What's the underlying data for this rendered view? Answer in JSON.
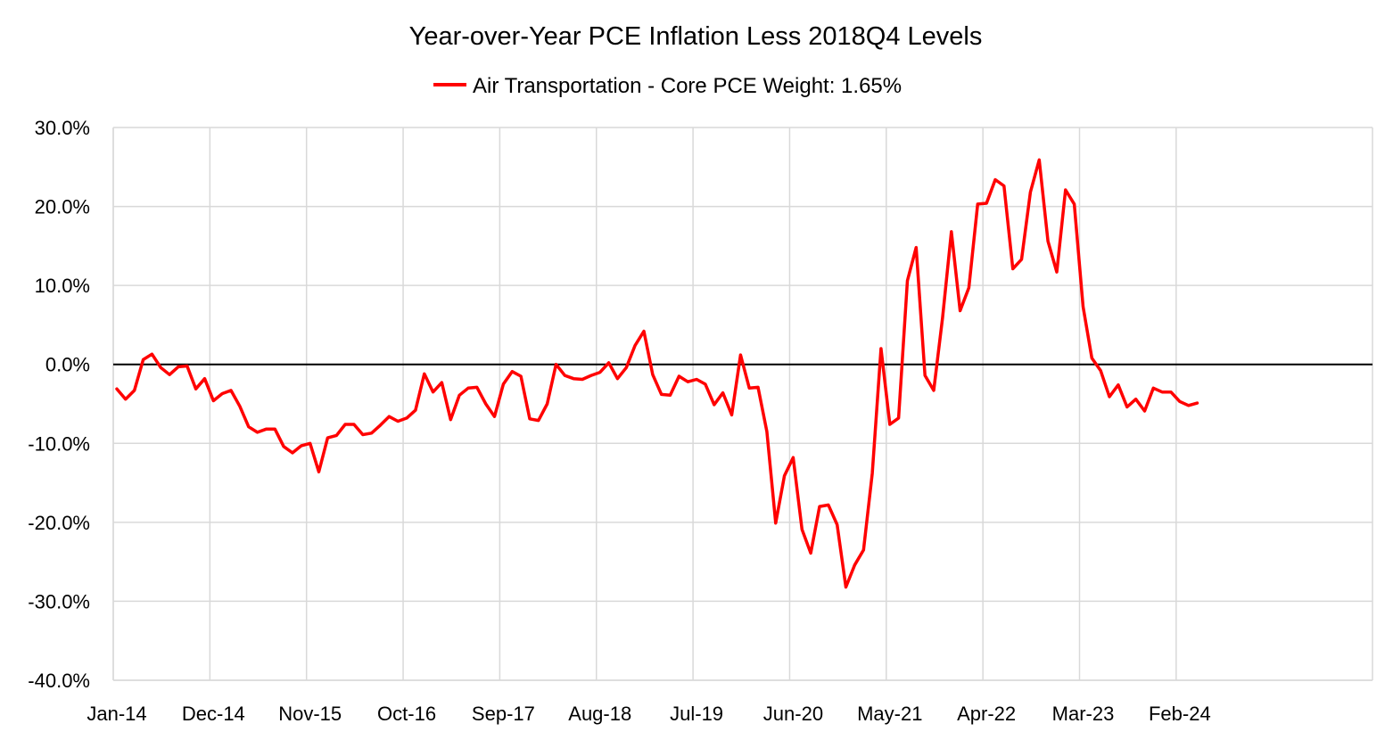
{
  "chart_data": {
    "type": "line",
    "title": "Year-over-Year PCE Inflation Less 2018Q4 Levels",
    "xlabel": "",
    "ylabel": "",
    "ylim": [
      -40,
      30
    ],
    "y_ticks": [
      "30.0%",
      "20.0%",
      "10.0%",
      "0.0%",
      "-10.0%",
      "-20.0%",
      "-30.0%",
      "-40.0%"
    ],
    "x_tick_labels": [
      "Jan-14",
      "Dec-14",
      "Nov-15",
      "Oct-16",
      "Sep-17",
      "Aug-18",
      "Jul-19",
      "Jun-20",
      "May-21",
      "Apr-22",
      "Mar-23",
      "Feb-24"
    ],
    "grid": true,
    "legend_position": "top-center",
    "series": [
      {
        "name": "Air Transportation - Core PCE Weight: 1.65%",
        "color": "#ff0000",
        "x": [
          "Jan-14",
          "Feb-14",
          "Mar-14",
          "Apr-14",
          "May-14",
          "Jun-14",
          "Jul-14",
          "Aug-14",
          "Sep-14",
          "Oct-14",
          "Nov-14",
          "Dec-14",
          "Jan-15",
          "Feb-15",
          "Mar-15",
          "Apr-15",
          "May-15",
          "Jun-15",
          "Jul-15",
          "Aug-15",
          "Sep-15",
          "Oct-15",
          "Nov-15",
          "Dec-15",
          "Jan-16",
          "Feb-16",
          "Mar-16",
          "Apr-16",
          "May-16",
          "Jun-16",
          "Jul-16",
          "Aug-16",
          "Sep-16",
          "Oct-16",
          "Nov-16",
          "Dec-16",
          "Jan-17",
          "Feb-17",
          "Mar-17",
          "Apr-17",
          "May-17",
          "Jun-17",
          "Jul-17",
          "Aug-17",
          "Sep-17",
          "Oct-17",
          "Nov-17",
          "Dec-17",
          "Jan-18",
          "Feb-18",
          "Mar-18",
          "Apr-18",
          "May-18",
          "Jun-18",
          "Jul-18",
          "Aug-18",
          "Sep-18",
          "Oct-18",
          "Nov-18",
          "Dec-18",
          "Jan-19",
          "Feb-19",
          "Mar-19",
          "Apr-19",
          "May-19",
          "Jun-19",
          "Jul-19",
          "Aug-19",
          "Sep-19",
          "Oct-19",
          "Nov-19",
          "Dec-19",
          "Jan-20",
          "Feb-20",
          "Mar-20",
          "Apr-20",
          "May-20",
          "Jun-20",
          "Jul-20",
          "Aug-20",
          "Sep-20",
          "Oct-20",
          "Nov-20",
          "Dec-20",
          "Jan-21",
          "Feb-21",
          "Mar-21",
          "Apr-21",
          "May-21",
          "Jun-21",
          "Jul-21",
          "Aug-21",
          "Sep-21",
          "Oct-21",
          "Nov-21",
          "Dec-21",
          "Jan-22",
          "Feb-22",
          "Mar-22",
          "Apr-22",
          "May-22",
          "Jun-22",
          "Jul-22",
          "Aug-22",
          "Sep-22",
          "Oct-22",
          "Nov-22",
          "Dec-22",
          "Jan-23",
          "Feb-23",
          "Mar-23",
          "Apr-23",
          "May-23",
          "Jun-23",
          "Jul-23",
          "Aug-23",
          "Sep-23",
          "Oct-23",
          "Nov-23",
          "Dec-23",
          "Jan-24",
          "Feb-24",
          "Mar-24",
          "Apr-24"
        ],
        "values": [
          -3.1,
          -4.4,
          -3.3,
          0.6,
          1.3,
          -0.4,
          -1.3,
          -0.3,
          -0.2,
          -3.1,
          -1.8,
          -4.6,
          -3.7,
          -3.3,
          -5.3,
          -7.9,
          -8.6,
          -8.2,
          -8.2,
          -10.4,
          -11.2,
          -10.3,
          -10.0,
          -13.6,
          -9.3,
          -9.0,
          -7.6,
          -7.6,
          -8.9,
          -8.7,
          -7.7,
          -6.6,
          -7.2,
          -6.8,
          -5.8,
          -1.2,
          -3.5,
          -2.3,
          -7.0,
          -3.9,
          -3.0,
          -2.9,
          -5.0,
          -6.6,
          -2.5,
          -0.9,
          -1.5,
          -6.9,
          -7.1,
          -5.0,
          0.0,
          -1.4,
          -1.8,
          -1.9,
          -1.4,
          -1.0,
          0.2,
          -1.8,
          -0.4,
          2.4,
          4.2,
          -1.3,
          -3.8,
          -3.9,
          -1.5,
          -2.2,
          -1.9,
          -2.5,
          -5.1,
          -3.6,
          -6.4,
          1.2,
          -3.0,
          -2.9,
          -8.5,
          -20.1,
          -14.1,
          -11.8,
          -20.9,
          -23.9,
          -18.0,
          -17.8,
          -20.3,
          -28.2,
          -25.4,
          -23.5,
          -13.8,
          2.0,
          -7.6,
          -6.8,
          10.6,
          14.8,
          -1.4,
          -3.3,
          5.9,
          16.8,
          6.8,
          9.7,
          20.3,
          20.4,
          23.4,
          22.6,
          12.1,
          13.3,
          21.8,
          25.9,
          15.6,
          11.7,
          22.1,
          20.3,
          7.3,
          0.8,
          -0.8,
          -4.1,
          -2.6,
          -5.4,
          -4.4,
          -5.9,
          -3.0,
          -3.5,
          -3.5,
          -4.7,
          -5.2,
          -4.9
        ]
      }
    ]
  }
}
